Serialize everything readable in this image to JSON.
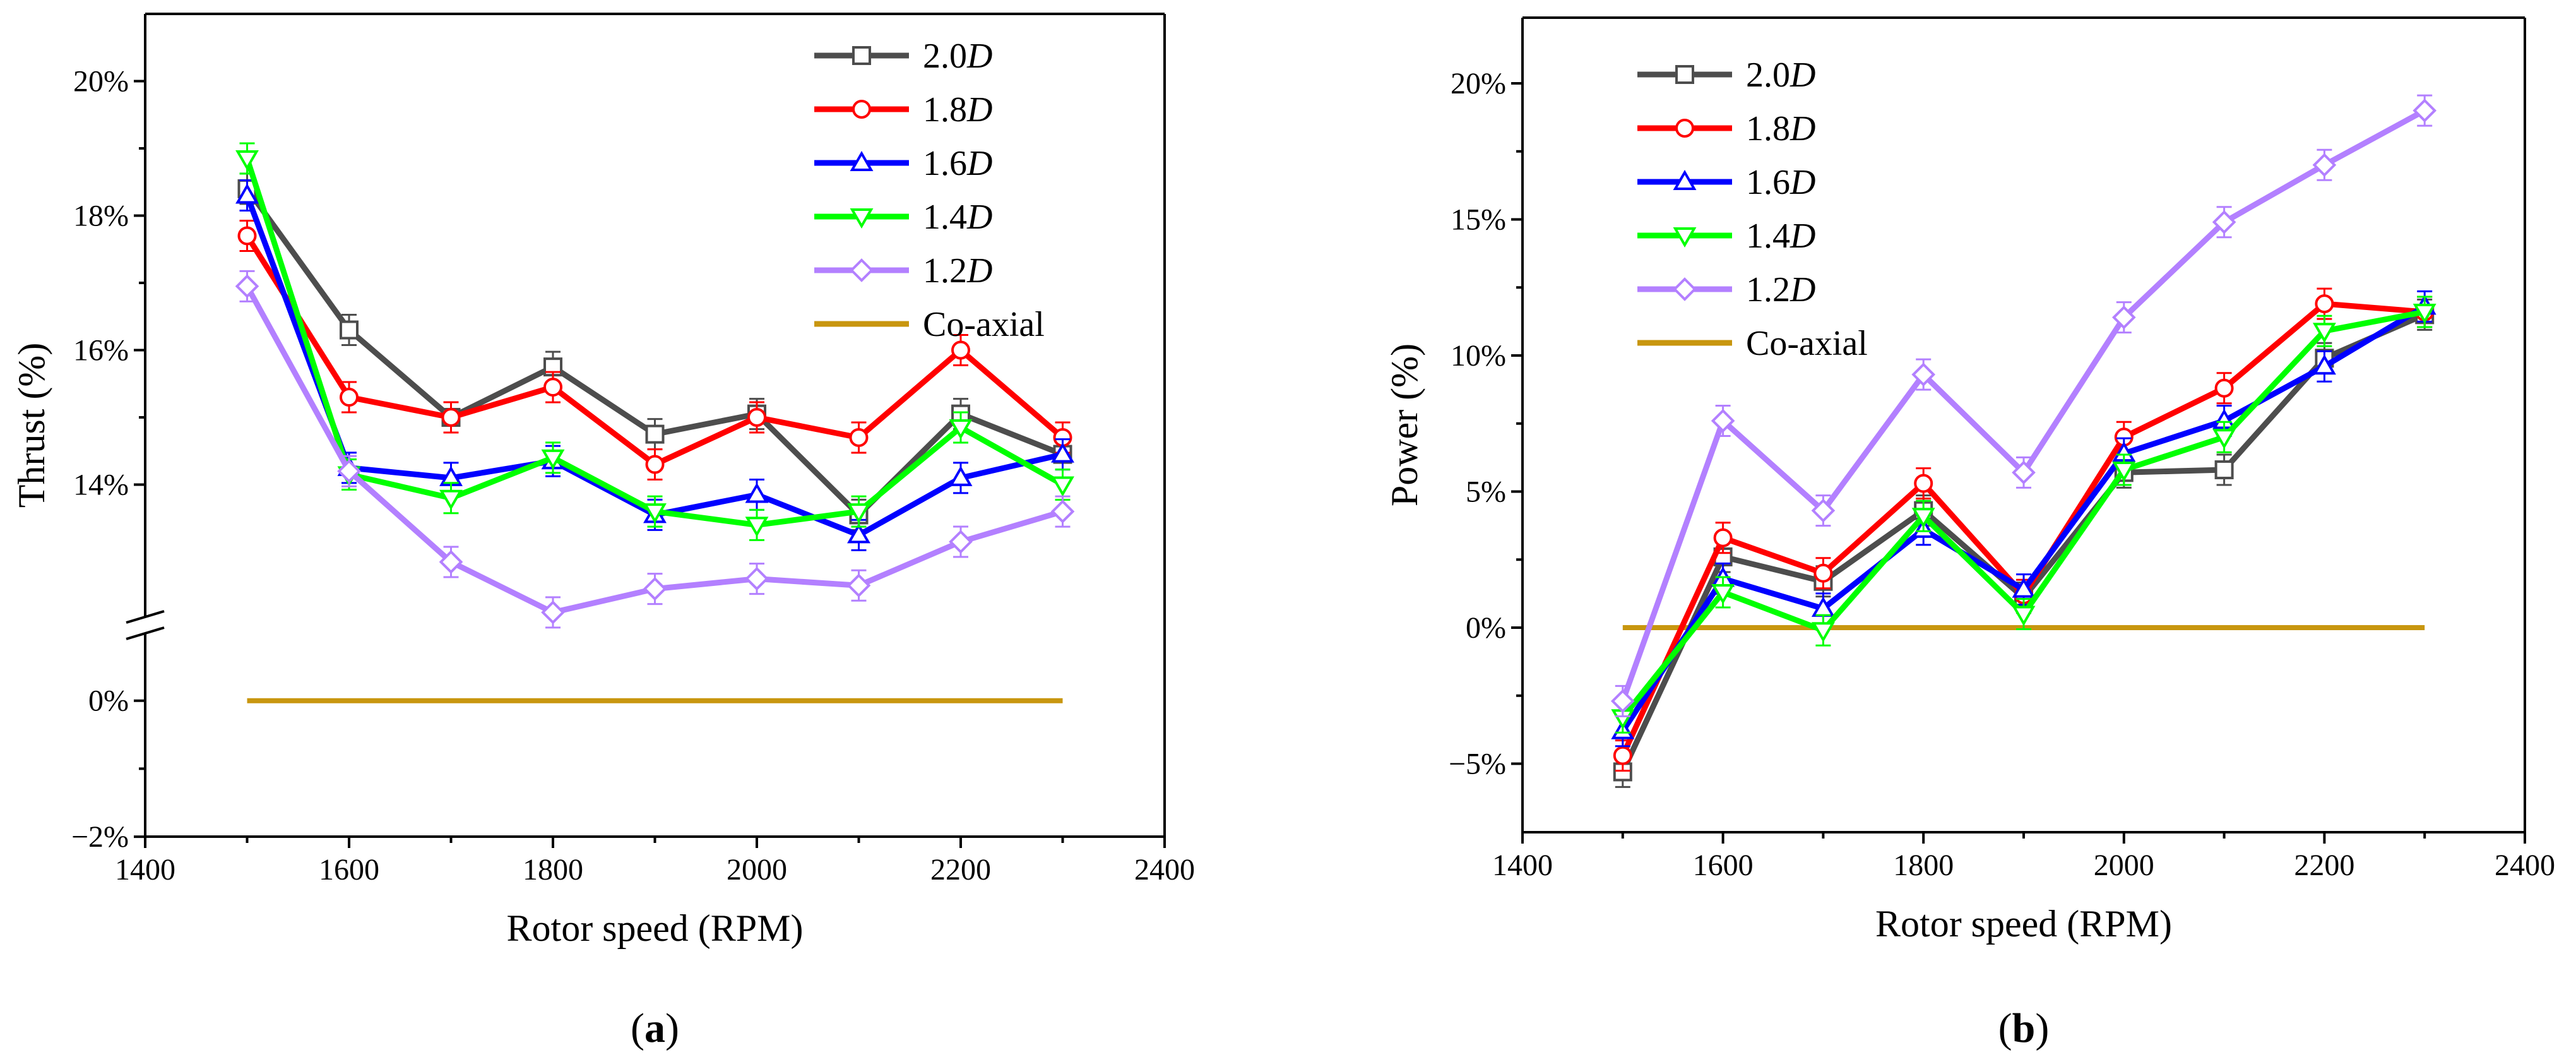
{
  "chart_data": [
    {
      "type": "line",
      "panel_label": "a",
      "xlabel": "Rotor speed (RPM)",
      "ylabel": "Thrust (%)",
      "xlim": [
        1400,
        2400
      ],
      "ylim": [
        -2,
        21
      ],
      "axis_break": "between 0% and 14%",
      "x_ticks": [
        1400,
        1600,
        1800,
        2000,
        2200,
        2400
      ],
      "x_tick_labels": [
        "1400",
        "1600",
        "1800",
        "2000",
        "2200",
        "2400"
      ],
      "y_tick_labels": [
        "−2%",
        "0%",
        "14%",
        "16%",
        "18%",
        "20%"
      ],
      "x": [
        1500,
        1600,
        1700,
        1800,
        1900,
        2000,
        2100,
        2200,
        2300
      ],
      "series": [
        {
          "name": "2.0D",
          "base": "2.0",
          "italic": "D",
          "color": "#4d4d4d",
          "marker": "square",
          "values": [
            18.4,
            16.3,
            15.0,
            15.75,
            14.75,
            15.05,
            13.55,
            15.05,
            14.45
          ]
        },
        {
          "name": "1.8D",
          "base": "1.8",
          "italic": "D",
          "color": "#ff0000",
          "marker": "circle",
          "values": [
            17.7,
            15.3,
            15.0,
            15.45,
            14.3,
            15.0,
            14.7,
            16.0,
            14.7
          ]
        },
        {
          "name": "1.6D",
          "base": "1.6",
          "italic": "D",
          "color": "#0000ff",
          "marker": "triangle-up",
          "values": [
            18.3,
            14.25,
            14.1,
            14.35,
            13.55,
            13.85,
            13.25,
            14.1,
            14.45
          ]
        },
        {
          "name": "1.4D",
          "base": "1.4",
          "italic": "D",
          "color": "#00ff00",
          "marker": "triangle-down",
          "values": [
            18.85,
            14.15,
            13.8,
            14.4,
            13.6,
            13.4,
            13.6,
            14.85,
            14.0
          ]
        },
        {
          "name": "1.2D",
          "base": "1.2",
          "italic": "D",
          "color": "#b380ff",
          "marker": "diamond",
          "values": [
            16.95,
            14.2,
            12.85,
            12.1,
            12.45,
            12.6,
            12.5,
            13.15,
            13.6
          ]
        },
        {
          "name": "Co-axial",
          "base": "Co-axial",
          "italic": "",
          "color": "#c8960f",
          "marker": "none",
          "values": [
            0,
            0,
            0,
            0,
            0,
            0,
            0,
            0,
            0
          ]
        }
      ]
    },
    {
      "type": "line",
      "panel_label": "b",
      "xlabel": "Rotor speed (RPM)",
      "ylabel": "Power (%)",
      "xlim": [
        1400,
        2400
      ],
      "ylim": [
        -7.5,
        22.5
      ],
      "x_ticks": [
        1400,
        1600,
        1800,
        2000,
        2200,
        2400
      ],
      "x_tick_labels": [
        "1400",
        "1600",
        "1800",
        "2000",
        "2200",
        "2400"
      ],
      "y_ticks": [
        -5,
        0,
        5,
        10,
        15,
        20
      ],
      "y_tick_labels": [
        "−5%",
        "0%",
        "5%",
        "10%",
        "15%",
        "20%"
      ],
      "x": [
        1500,
        1600,
        1700,
        1800,
        1900,
        2000,
        2100,
        2200,
        2300
      ],
      "series": [
        {
          "name": "2.0D",
          "base": "2.0",
          "italic": "D",
          "color": "#4d4d4d",
          "marker": "square",
          "values": [
            -5.3,
            2.6,
            1.7,
            4.3,
            1.1,
            5.7,
            5.8,
            9.9,
            11.5
          ]
        },
        {
          "name": "1.8D",
          "base": "1.8",
          "italic": "D",
          "color": "#ff0000",
          "marker": "circle",
          "values": [
            -4.7,
            3.3,
            2.0,
            5.3,
            1.2,
            7.0,
            8.8,
            11.9,
            11.6
          ]
        },
        {
          "name": "1.6D",
          "base": "1.6",
          "italic": "D",
          "color": "#0000ff",
          "marker": "triangle-up",
          "values": [
            -3.8,
            1.8,
            0.7,
            3.6,
            1.4,
            6.4,
            7.6,
            9.6,
            11.8
          ]
        },
        {
          "name": "1.4D",
          "base": "1.4",
          "italic": "D",
          "color": "#00ff00",
          "marker": "triangle-down",
          "values": [
            -3.3,
            1.3,
            -0.1,
            4.1,
            0.5,
            5.8,
            7.0,
            10.9,
            11.6
          ]
        },
        {
          "name": "1.2D",
          "base": "1.2",
          "italic": "D",
          "color": "#b380ff",
          "marker": "diamond",
          "values": [
            -2.7,
            7.6,
            4.3,
            9.3,
            5.7,
            11.4,
            14.9,
            17.0,
            19.0
          ]
        },
        {
          "name": "Co-axial",
          "base": "Co-axial",
          "italic": "",
          "color": "#c8960f",
          "marker": "none",
          "values": [
            0,
            0,
            0,
            0,
            0,
            0,
            0,
            0,
            0
          ]
        }
      ]
    }
  ]
}
